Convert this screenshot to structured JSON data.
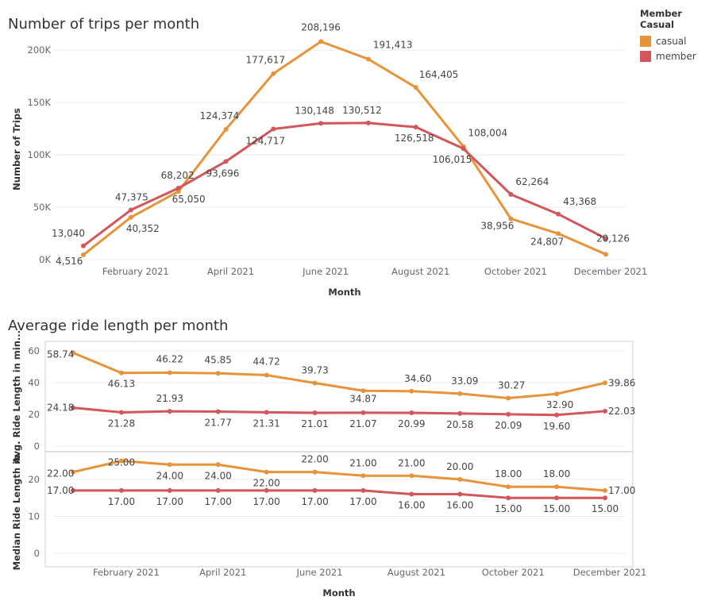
{
  "legend": {
    "title": "Member Casual",
    "items": [
      {
        "name": "casual",
        "color": "#E8923A"
      },
      {
        "name": "member",
        "color": "#D2565A"
      }
    ]
  },
  "chart_data": [
    {
      "type": "line",
      "title": "Number of trips per month",
      "xlabel": "Month",
      "ylabel": "Number of Trips",
      "x": [
        "2021-01",
        "2021-02",
        "2021-03",
        "2021-04",
        "2021-05",
        "2021-06",
        "2021-07",
        "2021-08",
        "2021-09",
        "2021-10",
        "2021-11",
        "2021-12"
      ],
      "xticks": [
        "February 2021",
        "April 2021",
        "June 2021",
        "August 2021",
        "October 2021",
        "December 2021"
      ],
      "yticks": [
        "0K",
        "50K",
        "100K",
        "150K",
        "200K"
      ],
      "ylim": [
        0,
        210000
      ],
      "series": [
        {
          "name": "casual",
          "color": "#E8923A",
          "values": [
            4516,
            40352,
            65050,
            124374,
            177617,
            208196,
            191413,
            164405,
            108004,
            38956,
            24807,
            5000
          ],
          "labels": [
            "4,516",
            "40,352",
            "65,050",
            "124,374",
            "177,617",
            "208,196",
            "191,413",
            "164,405",
            "108,004",
            "38,956",
            "24,807",
            ""
          ]
        },
        {
          "name": "member",
          "color": "#D2565A",
          "values": [
            13040,
            47375,
            68202,
            93696,
            124717,
            130148,
            130512,
            126518,
            106015,
            62264,
            43368,
            20126
          ],
          "labels": [
            "13,040",
            "47,375",
            "68,202",
            "93,696",
            "124,717",
            "130,148",
            "130,512",
            "126,518",
            "106,015",
            "62,264",
            "43,368",
            "20,126"
          ]
        }
      ]
    },
    {
      "type": "line",
      "title": "Average ride length per month",
      "xlabel": "",
      "ylabel": "Avg. Ride Length in min...",
      "x": [
        "2021-01",
        "2021-02",
        "2021-03",
        "2021-04",
        "2021-05",
        "2021-06",
        "2021-07",
        "2021-08",
        "2021-09",
        "2021-10",
        "2021-11",
        "2021-12"
      ],
      "yticks": [
        "0",
        "20",
        "40",
        "60"
      ],
      "ylim": [
        0,
        62
      ],
      "series": [
        {
          "name": "casual",
          "color": "#E8923A",
          "values": [
            58.74,
            46.13,
            46.22,
            45.85,
            44.72,
            39.73,
            34.87,
            34.6,
            33.09,
            30.27,
            32.9,
            39.86
          ],
          "labels": [
            "58.74",
            "46.13",
            "46.22",
            "45.85",
            "44.72",
            "39.73",
            "34.87",
            "34.60",
            "33.09",
            "30.27",
            "32.90",
            "39.86"
          ]
        },
        {
          "name": "member",
          "color": "#D2565A",
          "values": [
            24.18,
            21.28,
            21.93,
            21.77,
            21.31,
            21.01,
            21.07,
            20.99,
            20.58,
            20.09,
            19.6,
            22.03
          ],
          "labels": [
            "24.18",
            "21.28",
            "21.93",
            "21.77",
            "21.31",
            "21.01",
            "21.07",
            "20.99",
            "20.58",
            "20.09",
            "19.60",
            "22.03"
          ]
        }
      ]
    },
    {
      "type": "line",
      "title": "",
      "xlabel": "Month",
      "ylabel": "Median Ride Length in ...",
      "x": [
        "2021-01",
        "2021-02",
        "2021-03",
        "2021-04",
        "2021-05",
        "2021-06",
        "2021-07",
        "2021-08",
        "2021-09",
        "2021-10",
        "2021-11",
        "2021-12"
      ],
      "xticks": [
        "February 2021",
        "April 2021",
        "June 2021",
        "August 2021",
        "October 2021",
        "December 2021"
      ],
      "yticks": [
        "0",
        "10",
        "20"
      ],
      "ylim": [
        0,
        26
      ],
      "series": [
        {
          "name": "casual",
          "color": "#E8923A",
          "values": [
            22,
            25,
            24,
            24,
            22,
            22,
            21,
            21,
            20,
            18,
            18,
            17
          ],
          "labels": [
            "22.00",
            "25.00",
            "24.00",
            "24.00",
            "22.00",
            "22.00",
            "21.00",
            "21.00",
            "20.00",
            "18.00",
            "18.00",
            "17.00"
          ]
        },
        {
          "name": "member",
          "color": "#D2565A",
          "values": [
            17,
            17,
            17,
            17,
            17,
            17,
            17,
            16,
            16,
            15,
            15,
            15
          ],
          "labels": [
            "17.00",
            "17.00",
            "17.00",
            "17.00",
            "17.00",
            "17.00",
            "17.00",
            "16.00",
            "16.00",
            "15.00",
            "15.00",
            "15.00"
          ]
        }
      ]
    }
  ]
}
